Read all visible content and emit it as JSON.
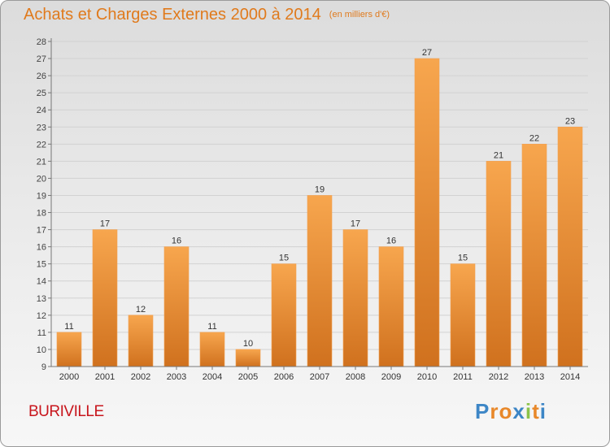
{
  "title": "Achats et Charges Externes 2000 à 2014",
  "unit_note": "(en milliers d'€)",
  "commune": "BURIVILLE",
  "logo": {
    "letters": [
      "P",
      "r",
      "o",
      "x",
      "i",
      "t",
      "i"
    ],
    "colors": [
      "#3d86c6",
      "#e8882a",
      "#e8882a",
      "#3d86c6",
      "#8bc34a",
      "#e8882a",
      "#3d86c6"
    ]
  },
  "colors": {
    "bar_top": "#f7a64e",
    "bar_bottom": "#d0711e",
    "title": "#e07a1c",
    "commune": "#c8161d"
  },
  "chart_data": {
    "type": "bar",
    "title": "Achats et Charges Externes 2000 à 2014",
    "categories": [
      "2000",
      "2001",
      "2002",
      "2003",
      "2004",
      "2005",
      "2006",
      "2007",
      "2008",
      "2009",
      "2010",
      "2011",
      "2012",
      "2013",
      "2014"
    ],
    "values": [
      11,
      17,
      12,
      16,
      11,
      10,
      15,
      19,
      17,
      16,
      27,
      15,
      21,
      22,
      23
    ],
    "ylim": [
      9,
      28
    ],
    "yticks": [
      9,
      10,
      11,
      12,
      13,
      14,
      15,
      16,
      17,
      18,
      19,
      20,
      21,
      22,
      23,
      24,
      25,
      26,
      27,
      28
    ],
    "grid": true,
    "xlabel": "",
    "ylabel": ""
  }
}
